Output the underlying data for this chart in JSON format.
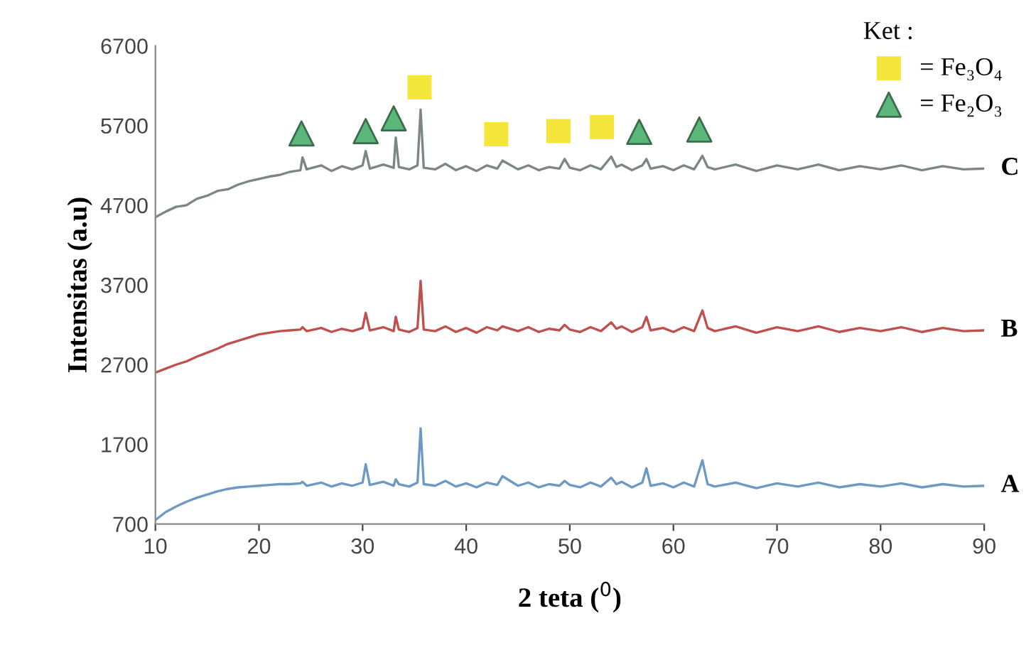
{
  "chart_data": {
    "type": "line",
    "xlabel": "2 teta ($^{0}$)",
    "ylabel": "Intensitas (a.u)",
    "legend_title": "Ket :",
    "legend": "top right",
    "grid": false,
    "xlim": [
      10,
      90
    ],
    "xticks": [
      10,
      20,
      30,
      40,
      50,
      60,
      70,
      80,
      90
    ],
    "ylim": [
      700,
      6700
    ],
    "yticks": [
      700,
      1700,
      2700,
      3700,
      4700,
      5700,
      6700
    ],
    "x": [
      10,
      11,
      12,
      13,
      14,
      15,
      16,
      17,
      18,
      19,
      20,
      21,
      22,
      23,
      24,
      24.2,
      24.6,
      26,
      27,
      28,
      29,
      30,
      30.3,
      30.7,
      32,
      33,
      33.2,
      33.5,
      34.5,
      35.3,
      35.6,
      35.9,
      37,
      38,
      39,
      40,
      41,
      42,
      43,
      43.5,
      45,
      46,
      47,
      48,
      49,
      49.5,
      50,
      51,
      52,
      53,
      54,
      54.5,
      55,
      56,
      57,
      57.4,
      57.8,
      59,
      60,
      61,
      62,
      62.8,
      63.3,
      64,
      66,
      68,
      70,
      72,
      74,
      76,
      78,
      80,
      82,
      84,
      86,
      88,
      90
    ],
    "series": [
      {
        "name": "C",
        "color": "#7d8782",
        "values": [
          4550,
          4620,
          4680,
          4700,
          4780,
          4820,
          4880,
          4900,
          4960,
          5000,
          5030,
          5060,
          5080,
          5120,
          5140,
          5300,
          5150,
          5200,
          5130,
          5190,
          5150,
          5200,
          5380,
          5160,
          5210,
          5170,
          5550,
          5180,
          5150,
          5200,
          5900,
          5170,
          5150,
          5220,
          5140,
          5190,
          5130,
          5200,
          5160,
          5260,
          5150,
          5200,
          5140,
          5180,
          5160,
          5280,
          5170,
          5140,
          5200,
          5150,
          5310,
          5180,
          5210,
          5140,
          5200,
          5280,
          5160,
          5190,
          5140,
          5200,
          5150,
          5320,
          5180,
          5150,
          5210,
          5130,
          5200,
          5150,
          5210,
          5140,
          5190,
          5150,
          5200,
          5140,
          5190,
          5150,
          5160
        ]
      },
      {
        "name": "B",
        "color": "#c0504d",
        "values": [
          2600,
          2650,
          2700,
          2740,
          2800,
          2850,
          2900,
          2960,
          3000,
          3040,
          3080,
          3100,
          3120,
          3130,
          3140,
          3170,
          3120,
          3160,
          3110,
          3150,
          3120,
          3160,
          3350,
          3130,
          3170,
          3120,
          3300,
          3140,
          3110,
          3160,
          3750,
          3140,
          3120,
          3180,
          3110,
          3160,
          3100,
          3170,
          3130,
          3180,
          3120,
          3170,
          3110,
          3150,
          3130,
          3200,
          3140,
          3110,
          3170,
          3120,
          3230,
          3150,
          3180,
          3110,
          3170,
          3300,
          3130,
          3160,
          3110,
          3170,
          3120,
          3380,
          3160,
          3120,
          3180,
          3100,
          3170,
          3120,
          3180,
          3110,
          3160,
          3120,
          3170,
          3110,
          3160,
          3120,
          3130
        ]
      },
      {
        "name": "A",
        "color": "#6e99c4",
        "values": [
          750,
          850,
          920,
          980,
          1030,
          1070,
          1110,
          1140,
          1160,
          1170,
          1180,
          1190,
          1200,
          1200,
          1210,
          1230,
          1180,
          1220,
          1170,
          1210,
          1180,
          1220,
          1450,
          1190,
          1230,
          1180,
          1260,
          1200,
          1170,
          1220,
          1900,
          1200,
          1180,
          1240,
          1170,
          1210,
          1160,
          1220,
          1190,
          1300,
          1180,
          1220,
          1160,
          1200,
          1180,
          1240,
          1190,
          1160,
          1220,
          1170,
          1280,
          1200,
          1230,
          1160,
          1220,
          1400,
          1180,
          1210,
          1160,
          1220,
          1170,
          1500,
          1200,
          1170,
          1220,
          1150,
          1210,
          1170,
          1220,
          1160,
          1200,
          1170,
          1210,
          1160,
          1200,
          1170,
          1180
        ]
      },
      {
        "name": "= Fe₃O₄",
        "type": "scatter",
        "marker": "square",
        "color": "#f5e63c",
        "x": [
          35.5,
          42.9,
          48.9,
          53.1
        ],
        "values": [
          6180,
          5590,
          5630,
          5680
        ]
      },
      {
        "name": "= Fe₂O₃",
        "type": "scatter",
        "marker": "triangle",
        "color": "#5cb87a",
        "x": [
          24.1,
          30.3,
          33,
          56.7,
          62.5
        ],
        "values": [
          5600,
          5630,
          5790,
          5620,
          5650
        ]
      }
    ]
  }
}
